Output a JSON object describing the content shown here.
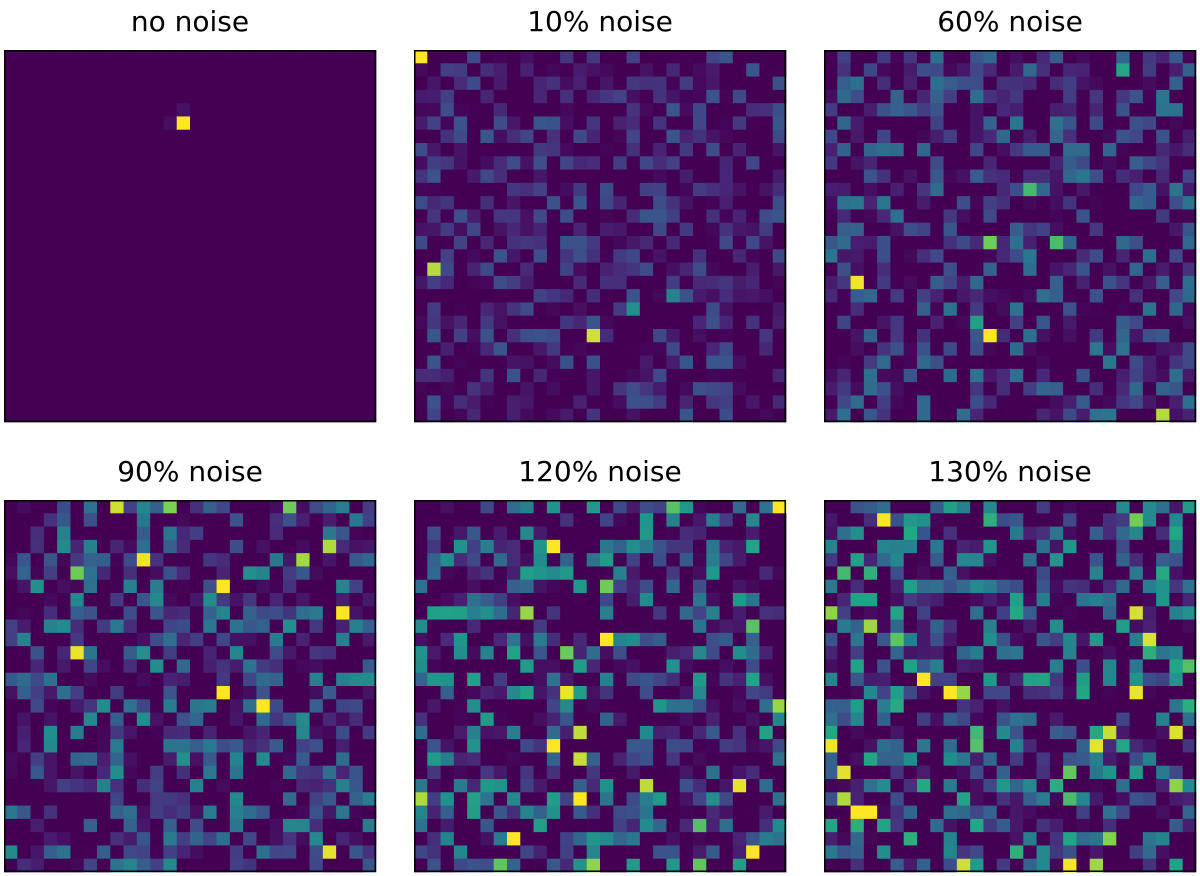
{
  "chart_data": [
    {
      "type": "heatmap",
      "title": "no noise",
      "noise_percent": 0,
      "grid": [
        28,
        28
      ],
      "colormap": "viridis",
      "value_range": [
        0,
        1
      ],
      "background_value": 0.0,
      "cells": [
        {
          "row": 5,
          "col": 13,
          "value": 1.0
        },
        {
          "row": 4,
          "col": 13,
          "value": 0.06
        },
        {
          "row": 5,
          "col": 12,
          "value": 0.05
        }
      ],
      "random_seed": 1,
      "noise_scale": 0,
      "hot_count": 0,
      "axes_ticks": "none"
    },
    {
      "type": "heatmap",
      "title": "10% noise",
      "noise_percent": 10,
      "grid": [
        28,
        28
      ],
      "colormap": "viridis",
      "value_range": [
        0,
        1
      ],
      "background_value": 0.0,
      "cells": [
        {
          "row": 0,
          "col": 0,
          "value": 1.0
        },
        {
          "row": 19,
          "col": 16,
          "value": 0.62
        },
        {
          "row": 18,
          "col": 19,
          "value": 0.55
        }
      ],
      "random_seed": 11,
      "noise_scale": 0.34,
      "hot_count": 2,
      "axes_ticks": "none"
    },
    {
      "type": "heatmap",
      "title": "60% noise",
      "noise_percent": 60,
      "grid": [
        28,
        28
      ],
      "colormap": "viridis",
      "value_range": [
        0,
        1
      ],
      "background_value": 0.0,
      "cells": [
        {
          "row": 21,
          "col": 12,
          "value": 1.0
        },
        {
          "row": 10,
          "col": 15,
          "value": 0.8
        },
        {
          "row": 20,
          "col": 11,
          "value": 0.7
        },
        {
          "row": 1,
          "col": 22,
          "value": 0.74
        }
      ],
      "random_seed": 61,
      "noise_scale": 0.5,
      "hot_count": 4,
      "axes_ticks": "none"
    },
    {
      "type": "heatmap",
      "title": "90% noise",
      "noise_percent": 90,
      "grid": [
        28,
        28
      ],
      "colormap": "viridis",
      "value_range": [
        0,
        1
      ],
      "background_value": 0.0,
      "cells": [
        {
          "row": 6,
          "col": 16,
          "value": 1.0
        },
        {
          "row": 8,
          "col": 25,
          "value": 1.0
        },
        {
          "row": 14,
          "col": 16,
          "value": 1.0
        },
        {
          "row": 15,
          "col": 19,
          "value": 1.0
        },
        {
          "row": 0,
          "col": 12,
          "value": 0.88
        }
      ],
      "random_seed": 91,
      "noise_scale": 0.62,
      "hot_count": 8,
      "axes_ticks": "none"
    },
    {
      "type": "heatmap",
      "title": "120% noise",
      "noise_percent": 120,
      "grid": [
        28,
        28
      ],
      "colormap": "viridis",
      "value_range": [
        0,
        1
      ],
      "background_value": 0.0,
      "cells": [
        {
          "row": 0,
          "col": 27,
          "value": 1.0
        },
        {
          "row": 3,
          "col": 10,
          "value": 1.0
        },
        {
          "row": 10,
          "col": 14,
          "value": 1.0
        },
        {
          "row": 18,
          "col": 10,
          "value": 1.0
        },
        {
          "row": 22,
          "col": 12,
          "value": 1.0
        },
        {
          "row": 25,
          "col": 7,
          "value": 1.0
        },
        {
          "row": 26,
          "col": 25,
          "value": 1.0
        }
      ],
      "random_seed": 121,
      "noise_scale": 0.72,
      "hot_count": 16,
      "axes_ticks": "none"
    },
    {
      "type": "heatmap",
      "title": "130% noise",
      "noise_percent": 130,
      "grid": [
        28,
        28
      ],
      "colormap": "viridis",
      "value_range": [
        0,
        1
      ],
      "background_value": 0.0,
      "cells": [
        {
          "row": 1,
          "col": 4,
          "value": 1.0
        },
        {
          "row": 13,
          "col": 7,
          "value": 1.0
        },
        {
          "row": 14,
          "col": 9,
          "value": 1.0
        },
        {
          "row": 23,
          "col": 2,
          "value": 1.0
        },
        {
          "row": 23,
          "col": 3,
          "value": 1.0
        }
      ],
      "random_seed": 131,
      "noise_scale": 0.78,
      "hot_count": 26,
      "axes_ticks": "none"
    }
  ],
  "colors": {
    "viridis_low": "#440154",
    "viridis_mid": "#21918c",
    "viridis_high": "#fde725",
    "frame": "#000000",
    "page_background": "#ffffff"
  }
}
